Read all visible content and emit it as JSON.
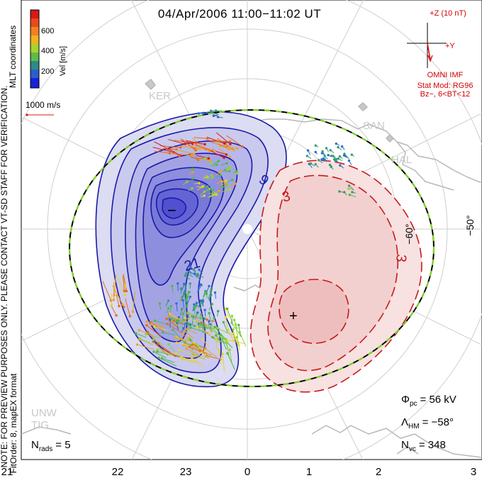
{
  "title": "04/Apr/2006 11:00−11:02 UT",
  "coord_system": "MLT coordinates",
  "colorbar": {
    "label": "Vel [m/s]",
    "ticks": [
      "600",
      "400",
      "200"
    ],
    "colors": [
      "#1e2bd6",
      "#2a6fd0",
      "#3a9a7a",
      "#4cb94a",
      "#8ed23a",
      "#e8d12b",
      "#f0a020",
      "#e86a1a",
      "#d81818"
    ]
  },
  "scale_vector": "1000 m/s",
  "imf": {
    "axis_plus_z": "+Z (10 nT)",
    "axis_plus_y": "+Y",
    "label": "OMNI IMF",
    "model_line1": "Stat Mod: RG96",
    "model_line2": "Bz−, 6<BT<12"
  },
  "preview_note_line1": "NOTE: FOR PREVIEW PURPOSES ONLY. PLEASE CONTACT VT-SD STAFF FOR VERIFICATION.",
  "preview_note_line2": "FitOrder: 8, mapEX format",
  "stations": [
    "KER",
    "SAN",
    "HAL",
    "UNW",
    "TIG"
  ],
  "latitude_labels": [
    "−60°",
    "−50°"
  ],
  "mlt_labels": [
    "21",
    "22",
    "23",
    "0",
    "1",
    "2",
    "3"
  ],
  "stats": {
    "n_rads_label": "N",
    "n_rads_sub": "rads",
    "n_rads_value": "= 5",
    "phi_label": "Φ",
    "phi_sub": "pc",
    "phi_value": "= 56 kV",
    "lambda_label": "Λ",
    "lambda_sub": "HM",
    "lambda_value": "= −58°",
    "nvc_label": "N",
    "nvc_sub": "vc",
    "nvc_value": "= 348"
  },
  "chart_data": {
    "type": "polar convection map",
    "hemisphere": "southern",
    "mlt_ticks": [
      "21",
      "22",
      "23",
      "0",
      "1",
      "2",
      "3"
    ],
    "velocity_scale": {
      "min": 0,
      "max": 700,
      "unit": "m/s",
      "ticks": [
        200,
        400,
        600
      ]
    },
    "potential_contours": {
      "negative_cell_labels": [
        "21",
        "9"
      ],
      "positive_cell_labels": [
        "3",
        "3"
      ],
      "negative_cell_minimum_marker": "−",
      "positive_cell_maximum_marker": "+"
    },
    "cross_polar_cap_potential_kV": 56,
    "heppner_maynard_boundary_deg": -58,
    "num_radars": 5,
    "num_vectors": 348
  }
}
